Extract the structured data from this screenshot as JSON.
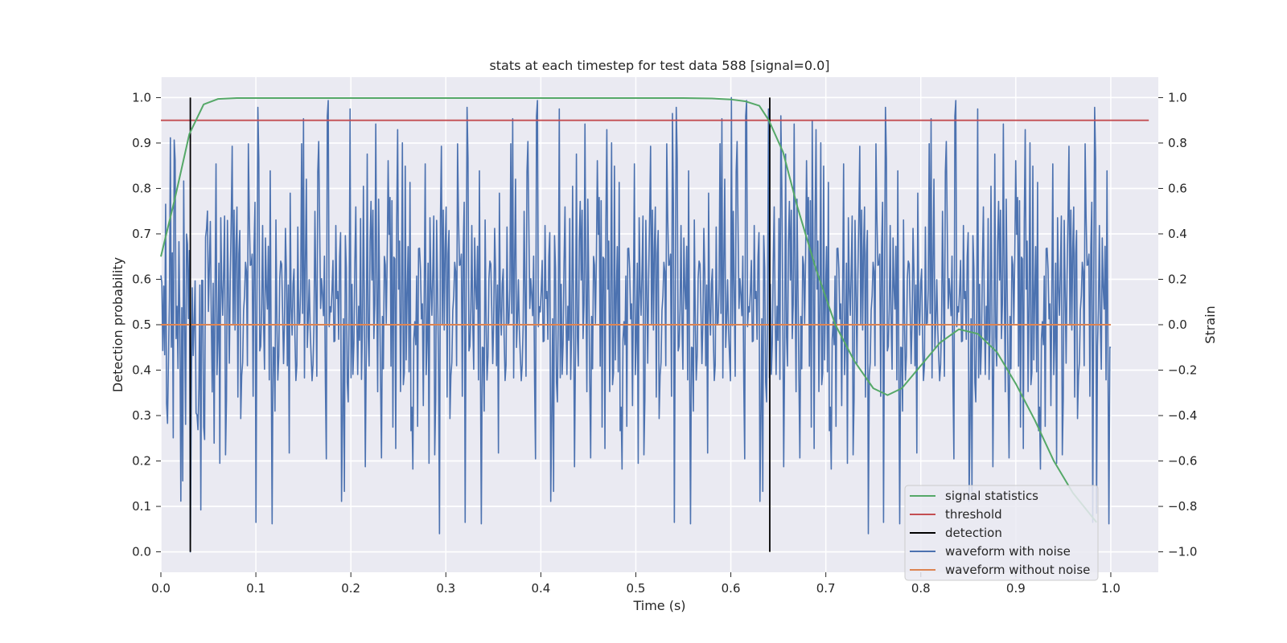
{
  "chart_data": {
    "type": "line",
    "title": "stats at each timestep for test data 588 [signal=0.0]",
    "xlabel": "Time (s)",
    "ylabel_left": "Detection probability",
    "ylabel_right": "Strain",
    "xlim": [
      0.0,
      1.05
    ],
    "ylim_left": [
      -0.045,
      1.045
    ],
    "ylim_right": [
      -1.09,
      1.09
    ],
    "x_ticks": [
      "0.0",
      "0.1",
      "0.2",
      "0.3",
      "0.4",
      "0.5",
      "0.6",
      "0.7",
      "0.8",
      "0.9",
      "1.0"
    ],
    "y_left_ticks": [
      "0.0",
      "0.1",
      "0.2",
      "0.3",
      "0.4",
      "0.5",
      "0.6",
      "0.7",
      "0.8",
      "0.9",
      "1.0"
    ],
    "y_right_ticks": [
      "−1.0",
      "−0.8",
      "−0.6",
      "−0.4",
      "−0.2",
      "0.0",
      "0.2",
      "0.4",
      "0.6",
      "0.8",
      "1.0"
    ],
    "grid": true,
    "legend_position": "lower-right",
    "colors": {
      "background": "#eaeaf2",
      "grid": "#ffffff",
      "signal_statistics": "#55a868",
      "threshold": "#c44e52",
      "detection": "#000000",
      "waveform_with_noise": "#4c72b0",
      "waveform_without_noise": "#dd8452"
    },
    "series": [
      {
        "name": "signal statistics",
        "axis": "left",
        "x": [
          0.0,
          0.015,
          0.03,
          0.045,
          0.06,
          0.08,
          0.1,
          0.2,
          0.3,
          0.4,
          0.5,
          0.55,
          0.58,
          0.6,
          0.615,
          0.63,
          0.64,
          0.655,
          0.67,
          0.69,
          0.71,
          0.73,
          0.75,
          0.765,
          0.78,
          0.8,
          0.82,
          0.84,
          0.86,
          0.88,
          0.9,
          0.92,
          0.94,
          0.96,
          0.985
        ],
        "y": [
          0.65,
          0.78,
          0.92,
          0.985,
          0.997,
          0.999,
          0.999,
          0.999,
          0.999,
          0.999,
          0.999,
          0.999,
          0.998,
          0.996,
          0.992,
          0.982,
          0.95,
          0.88,
          0.76,
          0.62,
          0.5,
          0.42,
          0.36,
          0.345,
          0.36,
          0.41,
          0.46,
          0.49,
          0.48,
          0.44,
          0.37,
          0.29,
          0.2,
          0.13,
          0.065
        ]
      },
      {
        "name": "threshold",
        "axis": "left",
        "x": [
          0.0,
          1.04
        ],
        "y": [
          0.95,
          0.95
        ]
      },
      {
        "name": "detection",
        "axis": "left",
        "segments": [
          {
            "x": 0.031,
            "y": [
              0.0,
              1.0
            ]
          },
          {
            "x": 0.641,
            "y": [
              0.0,
              1.0
            ]
          }
        ]
      },
      {
        "name": "waveform with noise",
        "axis": "right",
        "x_range": [
          0.0,
          1.0
        ],
        "n_points": 1000,
        "amplitude_range": [
          -1.0,
          1.0
        ],
        "peaks": [
          {
            "x": 0.031,
            "y": -1.0
          },
          {
            "x": 0.293,
            "y": -0.92
          },
          {
            "x": 0.539,
            "y": 0.93
          },
          {
            "x": 0.601,
            "y": 1.0
          },
          {
            "x": 0.653,
            "y": 0.92
          },
          {
            "x": 0.686,
            "y": 0.9
          },
          {
            "x": 0.745,
            "y": -0.92
          },
          {
            "x": 0.985,
            "y": -0.83
          }
        ]
      },
      {
        "name": "waveform without noise",
        "axis": "right",
        "x": [
          0.0,
          1.0
        ],
        "y": [
          0.0,
          0.0
        ]
      }
    ]
  }
}
